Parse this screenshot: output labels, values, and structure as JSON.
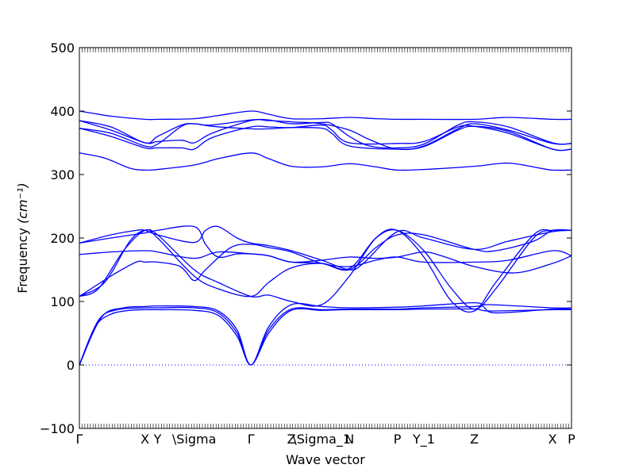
{
  "chart_data": {
    "type": "line",
    "xlabel": "Wave vector",
    "ylabel": "Frequency",
    "ylabel_unit": "(cm⁻¹)",
    "ylim": [
      -100,
      500
    ],
    "yticks": [
      -100,
      0,
      100,
      200,
      300,
      400,
      500
    ],
    "xlim": [
      0,
      7.8
    ],
    "xticks": [
      {
        "label": "Γ",
        "x": 0.0
      },
      {
        "label": "X",
        "x": 1.04
      },
      {
        "label": "Y",
        "x": 1.24
      },
      {
        "label": "\\Sigma",
        "x": 1.82
      },
      {
        "label": "Γ",
        "x": 2.72
      },
      {
        "label": "Z",
        "x": 3.36
      },
      {
        "label": "\\Sigma_1",
        "x": 3.84
      },
      {
        "label": "N",
        "x": 4.28
      },
      {
        "label": "P",
        "x": 5.04
      },
      {
        "label": "Y_1",
        "x": 5.46
      },
      {
        "label": "Z",
        "x": 6.26
      },
      {
        "label": "X",
        "x": 7.5
      },
      {
        "label": "P",
        "x": 7.8
      }
    ],
    "zero_line": 0,
    "series": [
      {
        "values": [
          [
            0,
            0
          ],
          [
            0.25,
            60
          ],
          [
            0.5,
            80
          ],
          [
            0.8,
            86
          ],
          [
            1.04,
            87
          ],
          [
            1.24,
            87
          ],
          [
            1.82,
            86
          ],
          [
            2.2,
            78
          ],
          [
            2.5,
            45
          ],
          [
            2.72,
            0
          ],
          [
            3.0,
            50
          ],
          [
            3.36,
            86
          ],
          [
            3.84,
            86
          ],
          [
            4.28,
            87
          ],
          [
            5.04,
            87
          ],
          [
            5.46,
            88
          ],
          [
            6.26,
            88
          ],
          [
            6.5,
            85
          ],
          [
            7.5,
            87
          ],
          [
            7.8,
            87
          ]
        ]
      },
      {
        "values": [
          [
            0,
            0
          ],
          [
            0.3,
            70
          ],
          [
            0.6,
            87
          ],
          [
            1.04,
            90
          ],
          [
            1.24,
            90
          ],
          [
            1.82,
            90
          ],
          [
            2.2,
            82
          ],
          [
            2.5,
            50
          ],
          [
            2.72,
            0
          ],
          [
            3.0,
            55
          ],
          [
            3.36,
            88
          ],
          [
            3.84,
            87
          ],
          [
            4.28,
            88
          ],
          [
            5.04,
            88
          ],
          [
            5.46,
            90
          ],
          [
            6.26,
            92
          ],
          [
            6.5,
            95
          ],
          [
            7.5,
            90
          ],
          [
            7.8,
            90
          ]
        ]
      },
      {
        "values": [
          [
            0,
            0
          ],
          [
            0.35,
            75
          ],
          [
            0.7,
            90
          ],
          [
            1.04,
            92
          ],
          [
            1.24,
            93
          ],
          [
            1.82,
            92
          ],
          [
            2.2,
            85
          ],
          [
            2.5,
            55
          ],
          [
            2.72,
            0
          ],
          [
            3.0,
            60
          ],
          [
            3.36,
            95
          ],
          [
            3.84,
            92
          ],
          [
            4.28,
            90
          ],
          [
            5.04,
            91
          ],
          [
            5.46,
            93
          ],
          [
            6.26,
            98
          ],
          [
            6.4,
            92
          ],
          [
            6.6,
            82
          ],
          [
            7.5,
            88
          ],
          [
            7.8,
            88
          ]
        ]
      },
      {
        "values": [
          [
            0,
            108
          ],
          [
            0.3,
            120
          ],
          [
            0.7,
            180
          ],
          [
            1.04,
            212
          ],
          [
            1.24,
            200
          ],
          [
            1.82,
            140
          ],
          [
            2.2,
            120
          ],
          [
            2.72,
            108
          ],
          [
            3.0,
            130
          ],
          [
            3.36,
            153
          ],
          [
            3.84,
            160
          ],
          [
            4.28,
            152
          ],
          [
            4.7,
            200
          ],
          [
            5.04,
            212
          ],
          [
            5.46,
            180
          ],
          [
            5.9,
            120
          ],
          [
            6.26,
            88
          ],
          [
            6.6,
            120
          ],
          [
            7.2,
            200
          ],
          [
            7.5,
            212
          ],
          [
            7.8,
            212
          ]
        ]
      },
      {
        "values": [
          [
            0,
            108
          ],
          [
            0.4,
            130
          ],
          [
            0.8,
            195
          ],
          [
            1.04,
            212
          ],
          [
            1.24,
            205
          ],
          [
            1.82,
            150
          ],
          [
            2.2,
            130
          ],
          [
            2.72,
            108
          ],
          [
            3.0,
            110
          ],
          [
            3.36,
            100
          ],
          [
            3.84,
            95
          ],
          [
            4.28,
            140
          ],
          [
            4.7,
            200
          ],
          [
            5.04,
            212
          ],
          [
            5.46,
            170
          ],
          [
            5.9,
            100
          ],
          [
            6.26,
            85
          ],
          [
            6.6,
            130
          ],
          [
            7.2,
            205
          ],
          [
            7.5,
            212
          ],
          [
            7.8,
            212
          ]
        ]
      },
      {
        "values": [
          [
            0,
            108
          ],
          [
            0.5,
            140
          ],
          [
            0.9,
            162
          ],
          [
            1.04,
            162
          ],
          [
            1.24,
            162
          ],
          [
            1.6,
            155
          ],
          [
            1.82,
            133
          ],
          [
            2.0,
            150
          ],
          [
            2.4,
            185
          ],
          [
            2.72,
            190
          ],
          [
            3.0,
            185
          ],
          [
            3.36,
            178
          ],
          [
            3.84,
            160
          ],
          [
            4.28,
            155
          ],
          [
            4.7,
            165
          ],
          [
            5.04,
            170
          ],
          [
            5.46,
            162
          ],
          [
            6.26,
            162
          ],
          [
            6.8,
            165
          ],
          [
            7.5,
            180
          ],
          [
            7.8,
            172
          ]
        ]
      },
      {
        "values": [
          [
            0,
            192
          ],
          [
            0.5,
            205
          ],
          [
            0.9,
            212
          ],
          [
            1.04,
            212
          ],
          [
            1.24,
            205
          ],
          [
            1.82,
            193
          ],
          [
            2.0,
            212
          ],
          [
            2.2,
            218
          ],
          [
            2.5,
            200
          ],
          [
            2.72,
            192
          ],
          [
            3.0,
            188
          ],
          [
            3.36,
            180
          ],
          [
            3.84,
            165
          ],
          [
            4.28,
            150
          ],
          [
            4.5,
            160
          ],
          [
            5.04,
            210
          ],
          [
            5.46,
            200
          ],
          [
            6.26,
            182
          ],
          [
            6.8,
            195
          ],
          [
            7.5,
            210
          ],
          [
            7.8,
            212
          ]
        ]
      },
      {
        "values": [
          [
            0,
            192
          ],
          [
            0.5,
            200
          ],
          [
            1.04,
            208
          ],
          [
            1.24,
            212
          ],
          [
            1.82,
            218
          ],
          [
            2.0,
            190
          ],
          [
            2.2,
            170
          ],
          [
            2.5,
            175
          ],
          [
            2.72,
            175
          ],
          [
            3.0,
            172
          ],
          [
            3.36,
            162
          ],
          [
            3.84,
            160
          ],
          [
            4.28,
            150
          ],
          [
            4.7,
            185
          ],
          [
            5.04,
            205
          ],
          [
            5.46,
            205
          ],
          [
            6.26,
            182
          ],
          [
            6.6,
            180
          ],
          [
            7.2,
            195
          ],
          [
            7.5,
            212
          ],
          [
            7.8,
            212
          ]
        ]
      },
      {
        "values": [
          [
            0,
            174
          ],
          [
            0.5,
            178
          ],
          [
            1.04,
            180
          ],
          [
            1.24,
            178
          ],
          [
            1.82,
            168
          ],
          [
            2.2,
            178
          ],
          [
            2.72,
            175
          ],
          [
            3.0,
            172
          ],
          [
            3.36,
            162
          ],
          [
            3.84,
            165
          ],
          [
            4.28,
            170
          ],
          [
            4.7,
            168
          ],
          [
            5.04,
            170
          ],
          [
            5.46,
            178
          ],
          [
            5.8,
            170
          ],
          [
            6.26,
            155
          ],
          [
            6.9,
            145
          ],
          [
            7.5,
            160
          ],
          [
            7.8,
            172
          ]
        ]
      },
      {
        "values": [
          [
            0,
            334
          ],
          [
            0.4,
            326
          ],
          [
            0.8,
            310
          ],
          [
            1.04,
            307
          ],
          [
            1.24,
            308
          ],
          [
            1.82,
            315
          ],
          [
            2.2,
            325
          ],
          [
            2.72,
            334
          ],
          [
            3.0,
            325
          ],
          [
            3.36,
            313
          ],
          [
            3.84,
            312
          ],
          [
            4.28,
            317
          ],
          [
            4.7,
            312
          ],
          [
            5.04,
            307
          ],
          [
            5.46,
            308
          ],
          [
            6.26,
            313
          ],
          [
            6.8,
            318
          ],
          [
            7.3,
            310
          ],
          [
            7.5,
            307
          ],
          [
            7.8,
            307
          ]
        ]
      },
      {
        "values": [
          [
            0,
            373
          ],
          [
            0.5,
            360
          ],
          [
            1.04,
            342
          ],
          [
            1.24,
            342
          ],
          [
            1.62,
            342
          ],
          [
            1.82,
            340
          ],
          [
            2.1,
            358
          ],
          [
            2.72,
            375
          ],
          [
            3.0,
            375
          ],
          [
            3.36,
            374
          ],
          [
            3.84,
            378
          ],
          [
            4.0,
            370
          ],
          [
            4.28,
            350
          ],
          [
            5.04,
            349
          ],
          [
            5.46,
            352
          ],
          [
            6.0,
            375
          ],
          [
            6.26,
            376
          ],
          [
            6.8,
            365
          ],
          [
            7.5,
            340
          ],
          [
            7.8,
            340
          ]
        ]
      },
      {
        "values": [
          [
            0,
            385
          ],
          [
            0.5,
            370
          ],
          [
            1.04,
            350
          ],
          [
            1.24,
            352
          ],
          [
            1.62,
            354
          ],
          [
            1.82,
            350
          ],
          [
            2.1,
            365
          ],
          [
            2.72,
            385
          ],
          [
            3.0,
            385
          ],
          [
            3.36,
            383
          ],
          [
            3.84,
            380
          ],
          [
            4.28,
            370
          ],
          [
            4.6,
            355
          ],
          [
            5.04,
            340
          ],
          [
            5.46,
            345
          ],
          [
            6.0,
            372
          ],
          [
            6.26,
            380
          ],
          [
            6.8,
            370
          ],
          [
            7.5,
            349
          ],
          [
            7.8,
            349
          ]
        ]
      },
      {
        "values": [
          [
            0,
            385
          ],
          [
            0.5,
            375
          ],
          [
            1.04,
            350
          ],
          [
            1.24,
            360
          ],
          [
            1.62,
            378
          ],
          [
            1.82,
            380
          ],
          [
            2.1,
            378
          ],
          [
            2.72,
            386
          ],
          [
            3.0,
            386
          ],
          [
            3.36,
            380
          ],
          [
            3.84,
            382
          ],
          [
            4.0,
            380
          ],
          [
            4.28,
            360
          ],
          [
            4.6,
            345
          ],
          [
            5.04,
            342
          ],
          [
            5.46,
            348
          ],
          [
            6.0,
            378
          ],
          [
            6.26,
            383
          ],
          [
            6.8,
            375
          ],
          [
            7.5,
            350
          ],
          [
            7.8,
            349
          ]
        ]
      },
      {
        "values": [
          [
            0,
            373
          ],
          [
            0.5,
            365
          ],
          [
            1.04,
            345
          ],
          [
            1.24,
            348
          ],
          [
            1.62,
            376
          ],
          [
            1.82,
            380
          ],
          [
            2.1,
            376
          ],
          [
            2.72,
            372
          ],
          [
            3.0,
            372
          ],
          [
            3.36,
            374
          ],
          [
            3.84,
            373
          ],
          [
            4.0,
            365
          ],
          [
            4.28,
            345
          ],
          [
            5.04,
            340
          ],
          [
            5.46,
            344
          ],
          [
            6.0,
            370
          ],
          [
            6.26,
            376
          ],
          [
            6.8,
            368
          ],
          [
            7.5,
            340
          ],
          [
            7.8,
            340
          ]
        ]
      },
      {
        "values": [
          [
            0,
            400
          ],
          [
            0.5,
            392
          ],
          [
            1.04,
            387
          ],
          [
            1.24,
            387
          ],
          [
            1.82,
            388
          ],
          [
            2.2,
            393
          ],
          [
            2.72,
            400
          ],
          [
            3.0,
            395
          ],
          [
            3.36,
            388
          ],
          [
            3.84,
            388
          ],
          [
            4.28,
            390
          ],
          [
            4.7,
            388
          ],
          [
            5.04,
            387
          ],
          [
            5.46,
            387
          ],
          [
            6.26,
            387
          ],
          [
            6.8,
            390
          ],
          [
            7.5,
            387
          ],
          [
            7.8,
            387
          ]
        ]
      }
    ]
  }
}
